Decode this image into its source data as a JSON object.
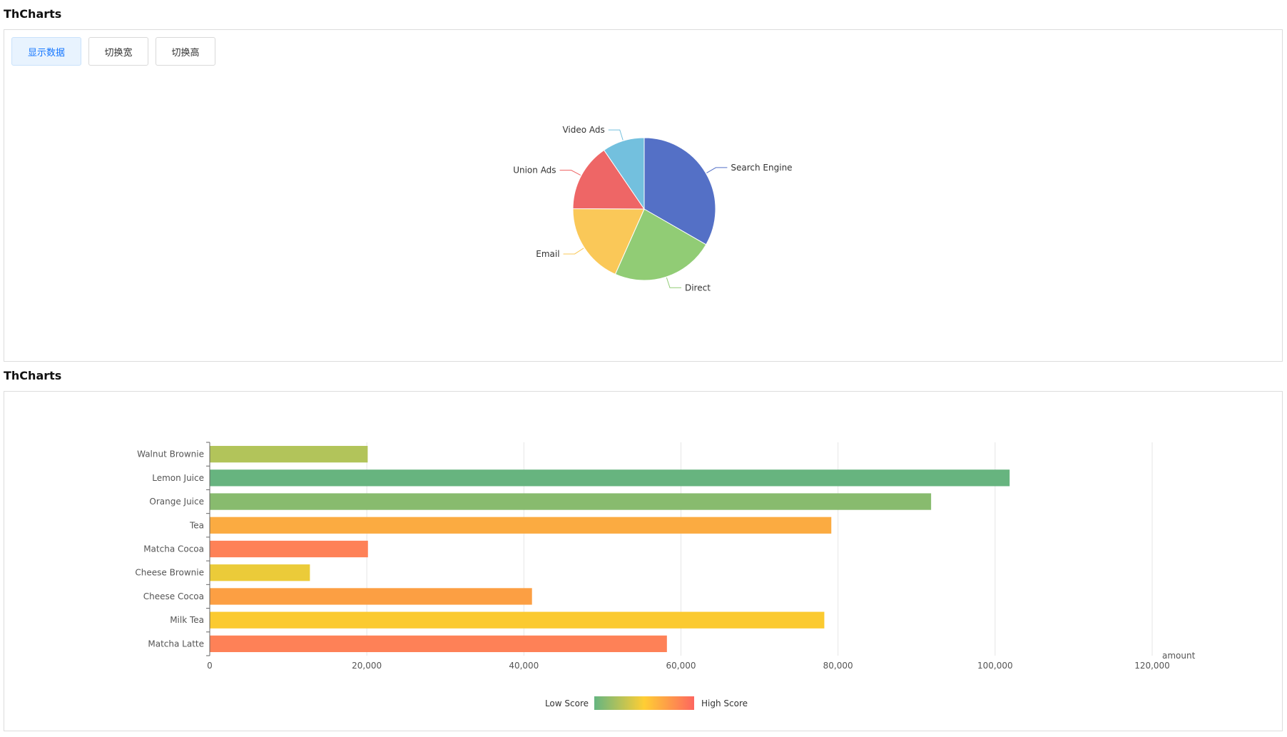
{
  "panels": [
    {
      "title": "ThCharts"
    },
    {
      "title": "ThCharts"
    }
  ],
  "toolbar": {
    "show_data_label": "显示数据",
    "toggle_width_label": "切换宽",
    "toggle_height_label": "切换高"
  },
  "chart_data": [
    {
      "type": "pie",
      "labels": [
        "Search Engine",
        "Direct",
        "Email",
        "Union Ads",
        "Video Ads"
      ],
      "values": [
        1048,
        735,
        580,
        484,
        300
      ],
      "colors": [
        "#5470c6",
        "#91cc75",
        "#fac858",
        "#ee6666",
        "#73c0de"
      ]
    },
    {
      "type": "bar",
      "orientation": "horizontal",
      "categories": [
        "Walnut Brownie",
        "Lemon Juice",
        "Orange Juice",
        "Tea",
        "Matcha Cocoa",
        "Cheese Brownie",
        "Cheese Cocoa",
        "Milk Tea",
        "Matcha Latte"
      ],
      "values": [
        20112,
        101852,
        91852,
        79146,
        20145,
        12755,
        41032,
        78254,
        58212
      ],
      "colors": [
        "#b2c45a",
        "#67b47f",
        "#88bb6e",
        "#fbab41",
        "#fe8157",
        "#ebcb39",
        "#fc9f43",
        "#fbca30",
        "#fe8157"
      ],
      "xlabel": "amount",
      "xlim": [
        0,
        120000
      ],
      "xticks": [
        "0",
        "20,000",
        "40,000",
        "60,000",
        "80,000",
        "100,000",
        "120,000"
      ],
      "grid": true,
      "visual_map": {
        "low_label": "Low Score",
        "high_label": "High Score",
        "colors": [
          "#65b581",
          "#ffce34",
          "#fd665f"
        ]
      }
    }
  ]
}
